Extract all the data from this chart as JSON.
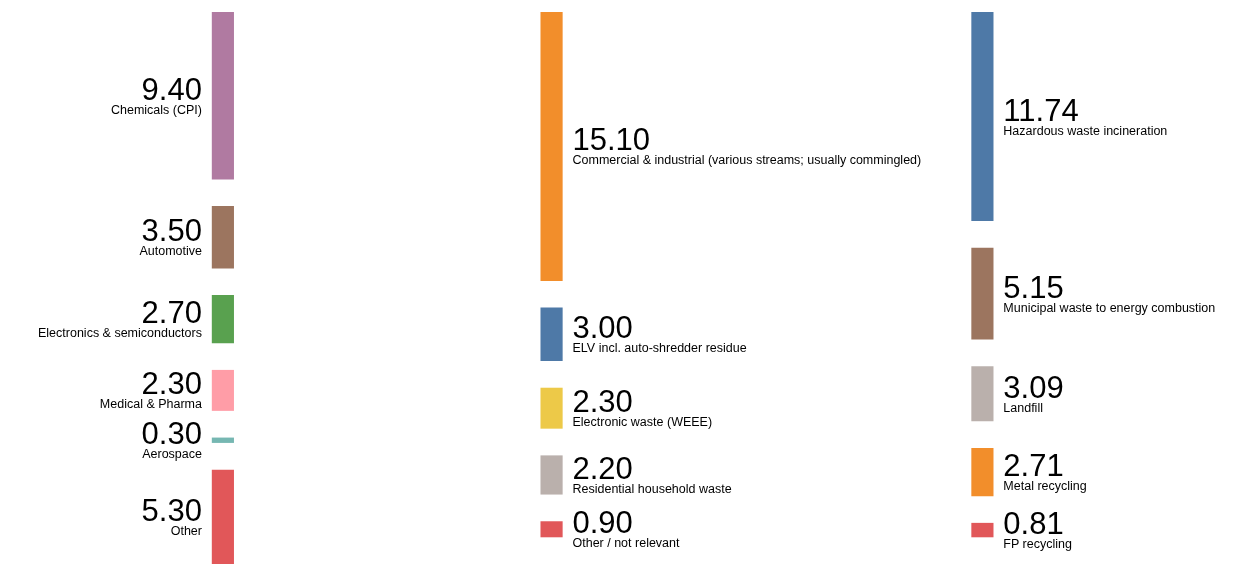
{
  "chart_data": {
    "type": "other",
    "categories": [
      "Chemicals (CPI)",
      "Automotive",
      "Electronics & semiconductors",
      "Medical & Pharma",
      "Aerospace",
      "Other",
      "Commercial & industrial (various streams; usually commingled)",
      "ELV incl. auto-shredder residue",
      "Electronic waste (WEEE)",
      "Residential household waste",
      "Other / not relevant",
      "Hazardous waste incineration",
      "Municipal waste to energy combustion",
      "Landfill",
      "Metal recycling",
      "FP recycling"
    ],
    "colors": [
      "#b07aa1",
      "#9c755f",
      "#59a14f",
      "#ff9da7",
      "#76b7b2",
      "#e15759",
      "#f28e2b",
      "#4e79a7",
      "#edc948",
      "#bab0ac",
      "#e15759",
      "#4e79a7",
      "#9c755f",
      "#bab0ac",
      "#f28e2b",
      "#e15759"
    ],
    "series": [
      {
        "values": [
          9.4,
          3.5,
          2.7,
          2.3,
          0.3,
          5.3,
          null,
          null,
          null,
          null,
          null,
          null,
          null,
          null,
          null,
          null
        ],
        "value_labels": [
          "9.40",
          "3.50",
          "2.70",
          "2.30",
          "0.30",
          "5.30",
          null,
          null,
          null,
          null,
          null,
          null,
          null,
          null,
          null,
          null
        ]
      },
      {
        "values": [
          null,
          null,
          null,
          null,
          null,
          null,
          15.1,
          3.0,
          2.3,
          2.2,
          0.9,
          null,
          null,
          null,
          null,
          null
        ],
        "value_labels": [
          null,
          null,
          null,
          null,
          null,
          null,
          "15.10",
          "3.00",
          "2.30",
          "2.20",
          "0.90",
          null,
          null,
          null,
          null,
          null
        ]
      },
      {
        "values": [
          null,
          null,
          null,
          null,
          null,
          null,
          null,
          null,
          null,
          null,
          null,
          11.74,
          5.15,
          3.09,
          2.71,
          0.81
        ],
        "value_labels": [
          null,
          null,
          null,
          null,
          null,
          null,
          null,
          null,
          null,
          null,
          null,
          "11.74",
          "5.15",
          "3.09",
          "2.71",
          "0.81"
        ]
      }
    ]
  }
}
